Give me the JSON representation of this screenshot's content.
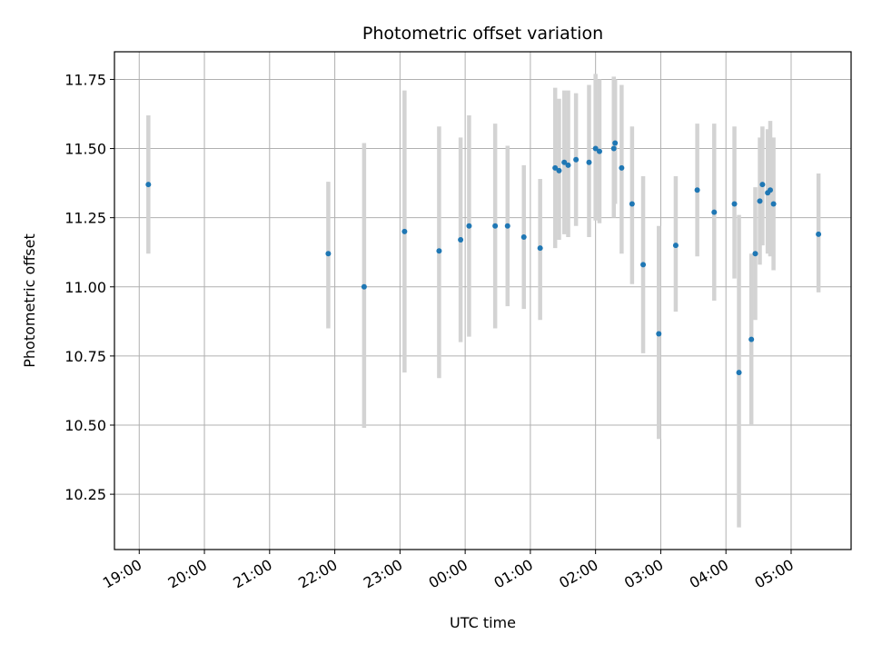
{
  "chart_data": {
    "type": "scatter",
    "title": "Photometric offset variation",
    "xlabel": "UTC time",
    "ylabel": "Photometric offset",
    "grid": true,
    "point_color": "#1f77b4",
    "errorbar_color": "#d3d3d3",
    "x_unit": "hours from 19:00 UTC",
    "xlim": [
      -0.38,
      10.92
    ],
    "ylim": [
      10.05,
      11.85
    ],
    "x_ticks": [
      {
        "value": 0,
        "label": "19:00"
      },
      {
        "value": 1,
        "label": "20:00"
      },
      {
        "value": 2,
        "label": "21:00"
      },
      {
        "value": 3,
        "label": "22:00"
      },
      {
        "value": 4,
        "label": "23:00"
      },
      {
        "value": 5,
        "label": "00:00"
      },
      {
        "value": 6,
        "label": "01:00"
      },
      {
        "value": 7,
        "label": "02:00"
      },
      {
        "value": 8,
        "label": "03:00"
      },
      {
        "value": 9,
        "label": "04:00"
      },
      {
        "value": 10,
        "label": "05:00"
      }
    ],
    "y_ticks": [
      {
        "value": 10.25,
        "label": "10.25"
      },
      {
        "value": 10.5,
        "label": "10.50"
      },
      {
        "value": 10.75,
        "label": "10.75"
      },
      {
        "value": 11.0,
        "label": "11.00"
      },
      {
        "value": 11.25,
        "label": "11.25"
      },
      {
        "value": 11.5,
        "label": "11.50"
      },
      {
        "value": 11.75,
        "label": "11.75"
      }
    ],
    "points": [
      {
        "x": 0.14,
        "y": 11.37,
        "low": 11.12,
        "high": 11.62
      },
      {
        "x": 2.9,
        "y": 11.12,
        "low": 10.85,
        "high": 11.38
      },
      {
        "x": 3.45,
        "y": 11.0,
        "low": 10.49,
        "high": 11.52
      },
      {
        "x": 4.07,
        "y": 11.2,
        "low": 10.69,
        "high": 11.71
      },
      {
        "x": 4.6,
        "y": 11.13,
        "low": 10.67,
        "high": 11.58
      },
      {
        "x": 4.93,
        "y": 11.17,
        "low": 10.8,
        "high": 11.54
      },
      {
        "x": 5.06,
        "y": 11.22,
        "low": 10.82,
        "high": 11.62
      },
      {
        "x": 5.46,
        "y": 11.22,
        "low": 10.85,
        "high": 11.59
      },
      {
        "x": 5.65,
        "y": 11.22,
        "low": 10.93,
        "high": 11.51
      },
      {
        "x": 5.9,
        "y": 11.18,
        "low": 10.92,
        "high": 11.44
      },
      {
        "x": 6.15,
        "y": 11.14,
        "low": 10.88,
        "high": 11.39
      },
      {
        "x": 6.38,
        "y": 11.43,
        "low": 11.14,
        "high": 11.72
      },
      {
        "x": 6.44,
        "y": 11.42,
        "low": 11.17,
        "high": 11.68
      },
      {
        "x": 6.52,
        "y": 11.45,
        "low": 11.19,
        "high": 11.71
      },
      {
        "x": 6.58,
        "y": 11.44,
        "low": 11.18,
        "high": 11.71
      },
      {
        "x": 6.7,
        "y": 11.46,
        "low": 11.22,
        "high": 11.7
      },
      {
        "x": 6.9,
        "y": 11.45,
        "low": 11.18,
        "high": 11.73
      },
      {
        "x": 7.0,
        "y": 11.5,
        "low": 11.24,
        "high": 11.77
      },
      {
        "x": 7.06,
        "y": 11.49,
        "low": 11.23,
        "high": 11.75
      },
      {
        "x": 7.28,
        "y": 11.5,
        "low": 11.25,
        "high": 11.76
      },
      {
        "x": 7.3,
        "y": 11.52,
        "low": 11.3,
        "high": 11.75
      },
      {
        "x": 7.4,
        "y": 11.43,
        "low": 11.12,
        "high": 11.73
      },
      {
        "x": 7.56,
        "y": 11.3,
        "low": 11.01,
        "high": 11.58
      },
      {
        "x": 7.73,
        "y": 11.08,
        "low": 10.76,
        "high": 11.4
      },
      {
        "x": 7.97,
        "y": 10.83,
        "low": 10.45,
        "high": 11.22
      },
      {
        "x": 8.23,
        "y": 11.15,
        "low": 10.91,
        "high": 11.4
      },
      {
        "x": 8.56,
        "y": 11.35,
        "low": 11.11,
        "high": 11.59
      },
      {
        "x": 8.82,
        "y": 11.27,
        "low": 10.95,
        "high": 11.59
      },
      {
        "x": 9.13,
        "y": 11.3,
        "low": 11.03,
        "high": 11.58
      },
      {
        "x": 9.2,
        "y": 10.69,
        "low": 10.13,
        "high": 11.26
      },
      {
        "x": 9.39,
        "y": 10.81,
        "low": 10.5,
        "high": 11.12
      },
      {
        "x": 9.45,
        "y": 11.12,
        "low": 10.88,
        "high": 11.36
      },
      {
        "x": 9.52,
        "y": 11.31,
        "low": 11.08,
        "high": 11.54
      },
      {
        "x": 9.56,
        "y": 11.37,
        "low": 11.15,
        "high": 11.58
      },
      {
        "x": 9.64,
        "y": 11.34,
        "low": 11.12,
        "high": 11.57
      },
      {
        "x": 9.68,
        "y": 11.35,
        "low": 11.11,
        "high": 11.6
      },
      {
        "x": 9.73,
        "y": 11.3,
        "low": 11.06,
        "high": 11.54
      },
      {
        "x": 10.42,
        "y": 11.19,
        "low": 10.98,
        "high": 11.41
      }
    ]
  }
}
